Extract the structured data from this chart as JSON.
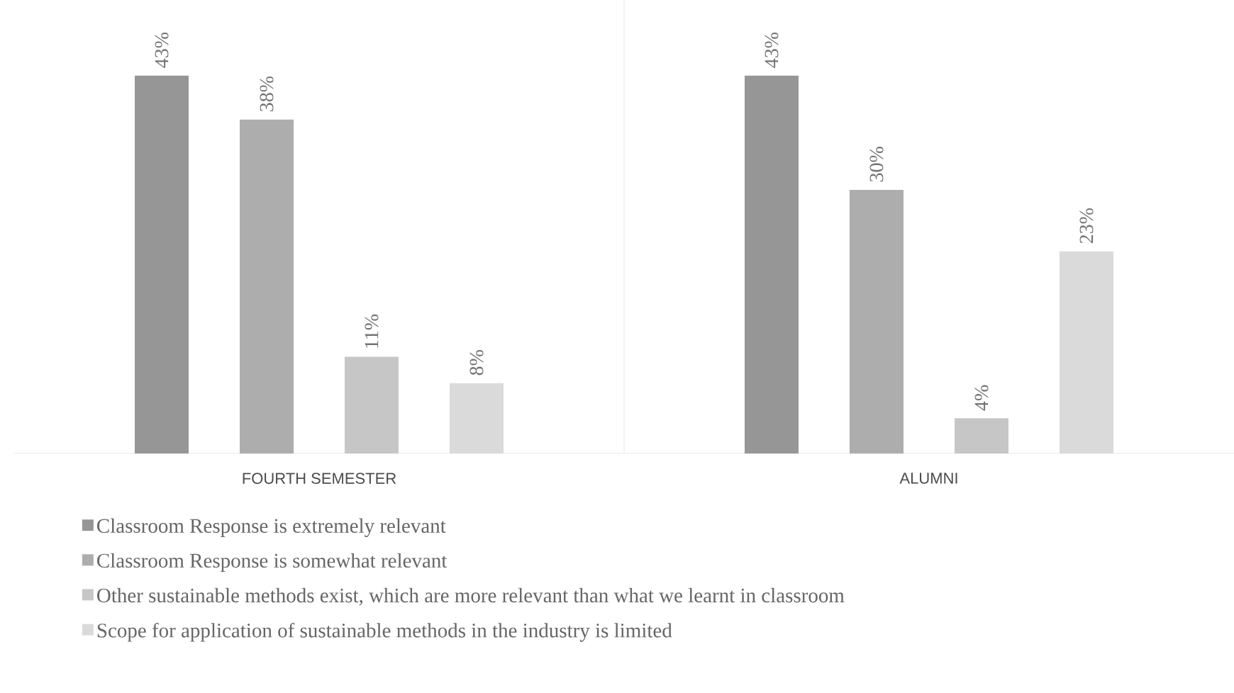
{
  "chart_data": {
    "type": "bar",
    "categories": [
      "FOURTH SEMESTER",
      "ALUMNI"
    ],
    "series": [
      {
        "name": "Classroom Response is extremely relevant",
        "color": "#969696",
        "values": [
          43,
          43
        ],
        "value_labels": [
          "43%",
          "43%"
        ]
      },
      {
        "name": "Classroom Response is somewhat relevant",
        "color": "#adadad",
        "values": [
          38,
          30
        ],
        "value_labels": [
          "38%",
          "30%"
        ]
      },
      {
        "name": "Other sustainable methods exist, which are more relevant than what we learnt in classroom",
        "color": "#c6c6c6",
        "values": [
          11,
          4
        ],
        "value_labels": [
          "11%",
          "4%"
        ]
      },
      {
        "name": "Scope for application of sustainable methods in the industry is limited",
        "color": "#dadada",
        "values": [
          8,
          23
        ],
        "value_labels": [
          "8%",
          "23%"
        ]
      }
    ],
    "legend": "bottom"
  }
}
